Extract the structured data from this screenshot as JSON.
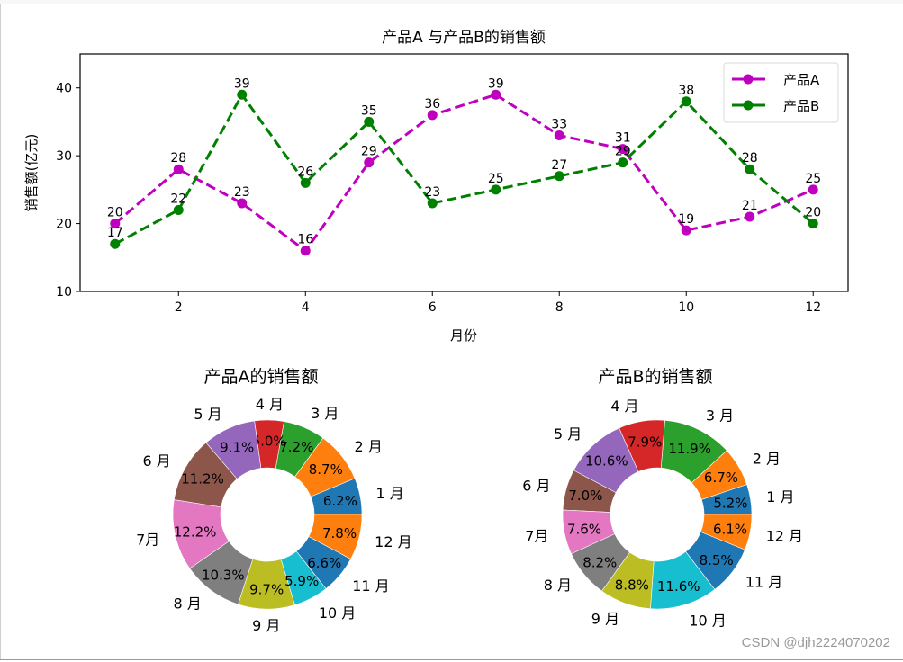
{
  "chart_data": [
    {
      "type": "line",
      "title": "产品A 与产品B的销售额",
      "xlabel": "月份",
      "ylabel": "销售额(亿元)",
      "x": [
        1,
        2,
        3,
        4,
        5,
        6,
        7,
        8,
        9,
        10,
        11,
        12
      ],
      "xticks": [
        2,
        4,
        6,
        8,
        10,
        12
      ],
      "yticks": [
        10,
        20,
        30,
        40
      ],
      "xlim": [
        0.45,
        12.55
      ],
      "ylim": [
        10,
        45
      ],
      "grid": false,
      "legend_position": "upper right",
      "series": [
        {
          "name": "产品A",
          "color": "#bf00bf",
          "linestyle": "dashed",
          "marker": "o",
          "values": [
            20,
            28,
            23,
            16,
            29,
            36,
            39,
            33,
            31,
            19,
            21,
            25
          ]
        },
        {
          "name": "产品B",
          "color": "#008000",
          "linestyle": "dashed",
          "marker": "o",
          "values": [
            17,
            22,
            39,
            26,
            35,
            23,
            25,
            27,
            29,
            38,
            28,
            20
          ]
        }
      ]
    },
    {
      "type": "pie",
      "style": "donut",
      "title": "产品A的销售额",
      "labels": [
        "1 月",
        "2 月",
        "3 月",
        "4 月",
        "5 月",
        "6 月",
        "7月",
        "8 月",
        "9 月",
        "10 月",
        "11 月",
        "12 月"
      ],
      "values": [
        20,
        28,
        23,
        16,
        29,
        36,
        39,
        33,
        31,
        19,
        21,
        25
      ],
      "percent_labels": [
        "6.2%",
        "8.7%",
        "7.2%",
        "5.0%",
        "9.1%",
        "11.2%",
        "12.2%",
        "10.3%",
        "9.7%",
        "5.9%",
        "6.6%",
        "7.8%"
      ]
    },
    {
      "type": "pie",
      "style": "donut",
      "title": "产品B的销售额",
      "labels": [
        "1 月",
        "2 月",
        "3 月",
        "4 月",
        "5 月",
        "6 月",
        "7月",
        "8 月",
        "9 月",
        "10 月",
        "11 月",
        "12 月"
      ],
      "values": [
        17,
        22,
        39,
        26,
        35,
        23,
        25,
        27,
        29,
        38,
        28,
        20
      ],
      "percent_labels": [
        "5.2%",
        "6.7%",
        "11.9%",
        "7.9%",
        "10.6%",
        "7.0%",
        "7.6%",
        "8.2%",
        "8.8%",
        "11.6%",
        "8.5%",
        "6.1%"
      ]
    }
  ],
  "pie_colors": [
    "#1f77b4",
    "#ff7f0e",
    "#2ca02c",
    "#d62728",
    "#9467bd",
    "#8c564b",
    "#e377c2",
    "#7f7f7f",
    "#bcbd22",
    "#17becf",
    "#1f77b4",
    "#ff7f0e"
  ],
  "watermark": "CSDN @djh2224070202"
}
